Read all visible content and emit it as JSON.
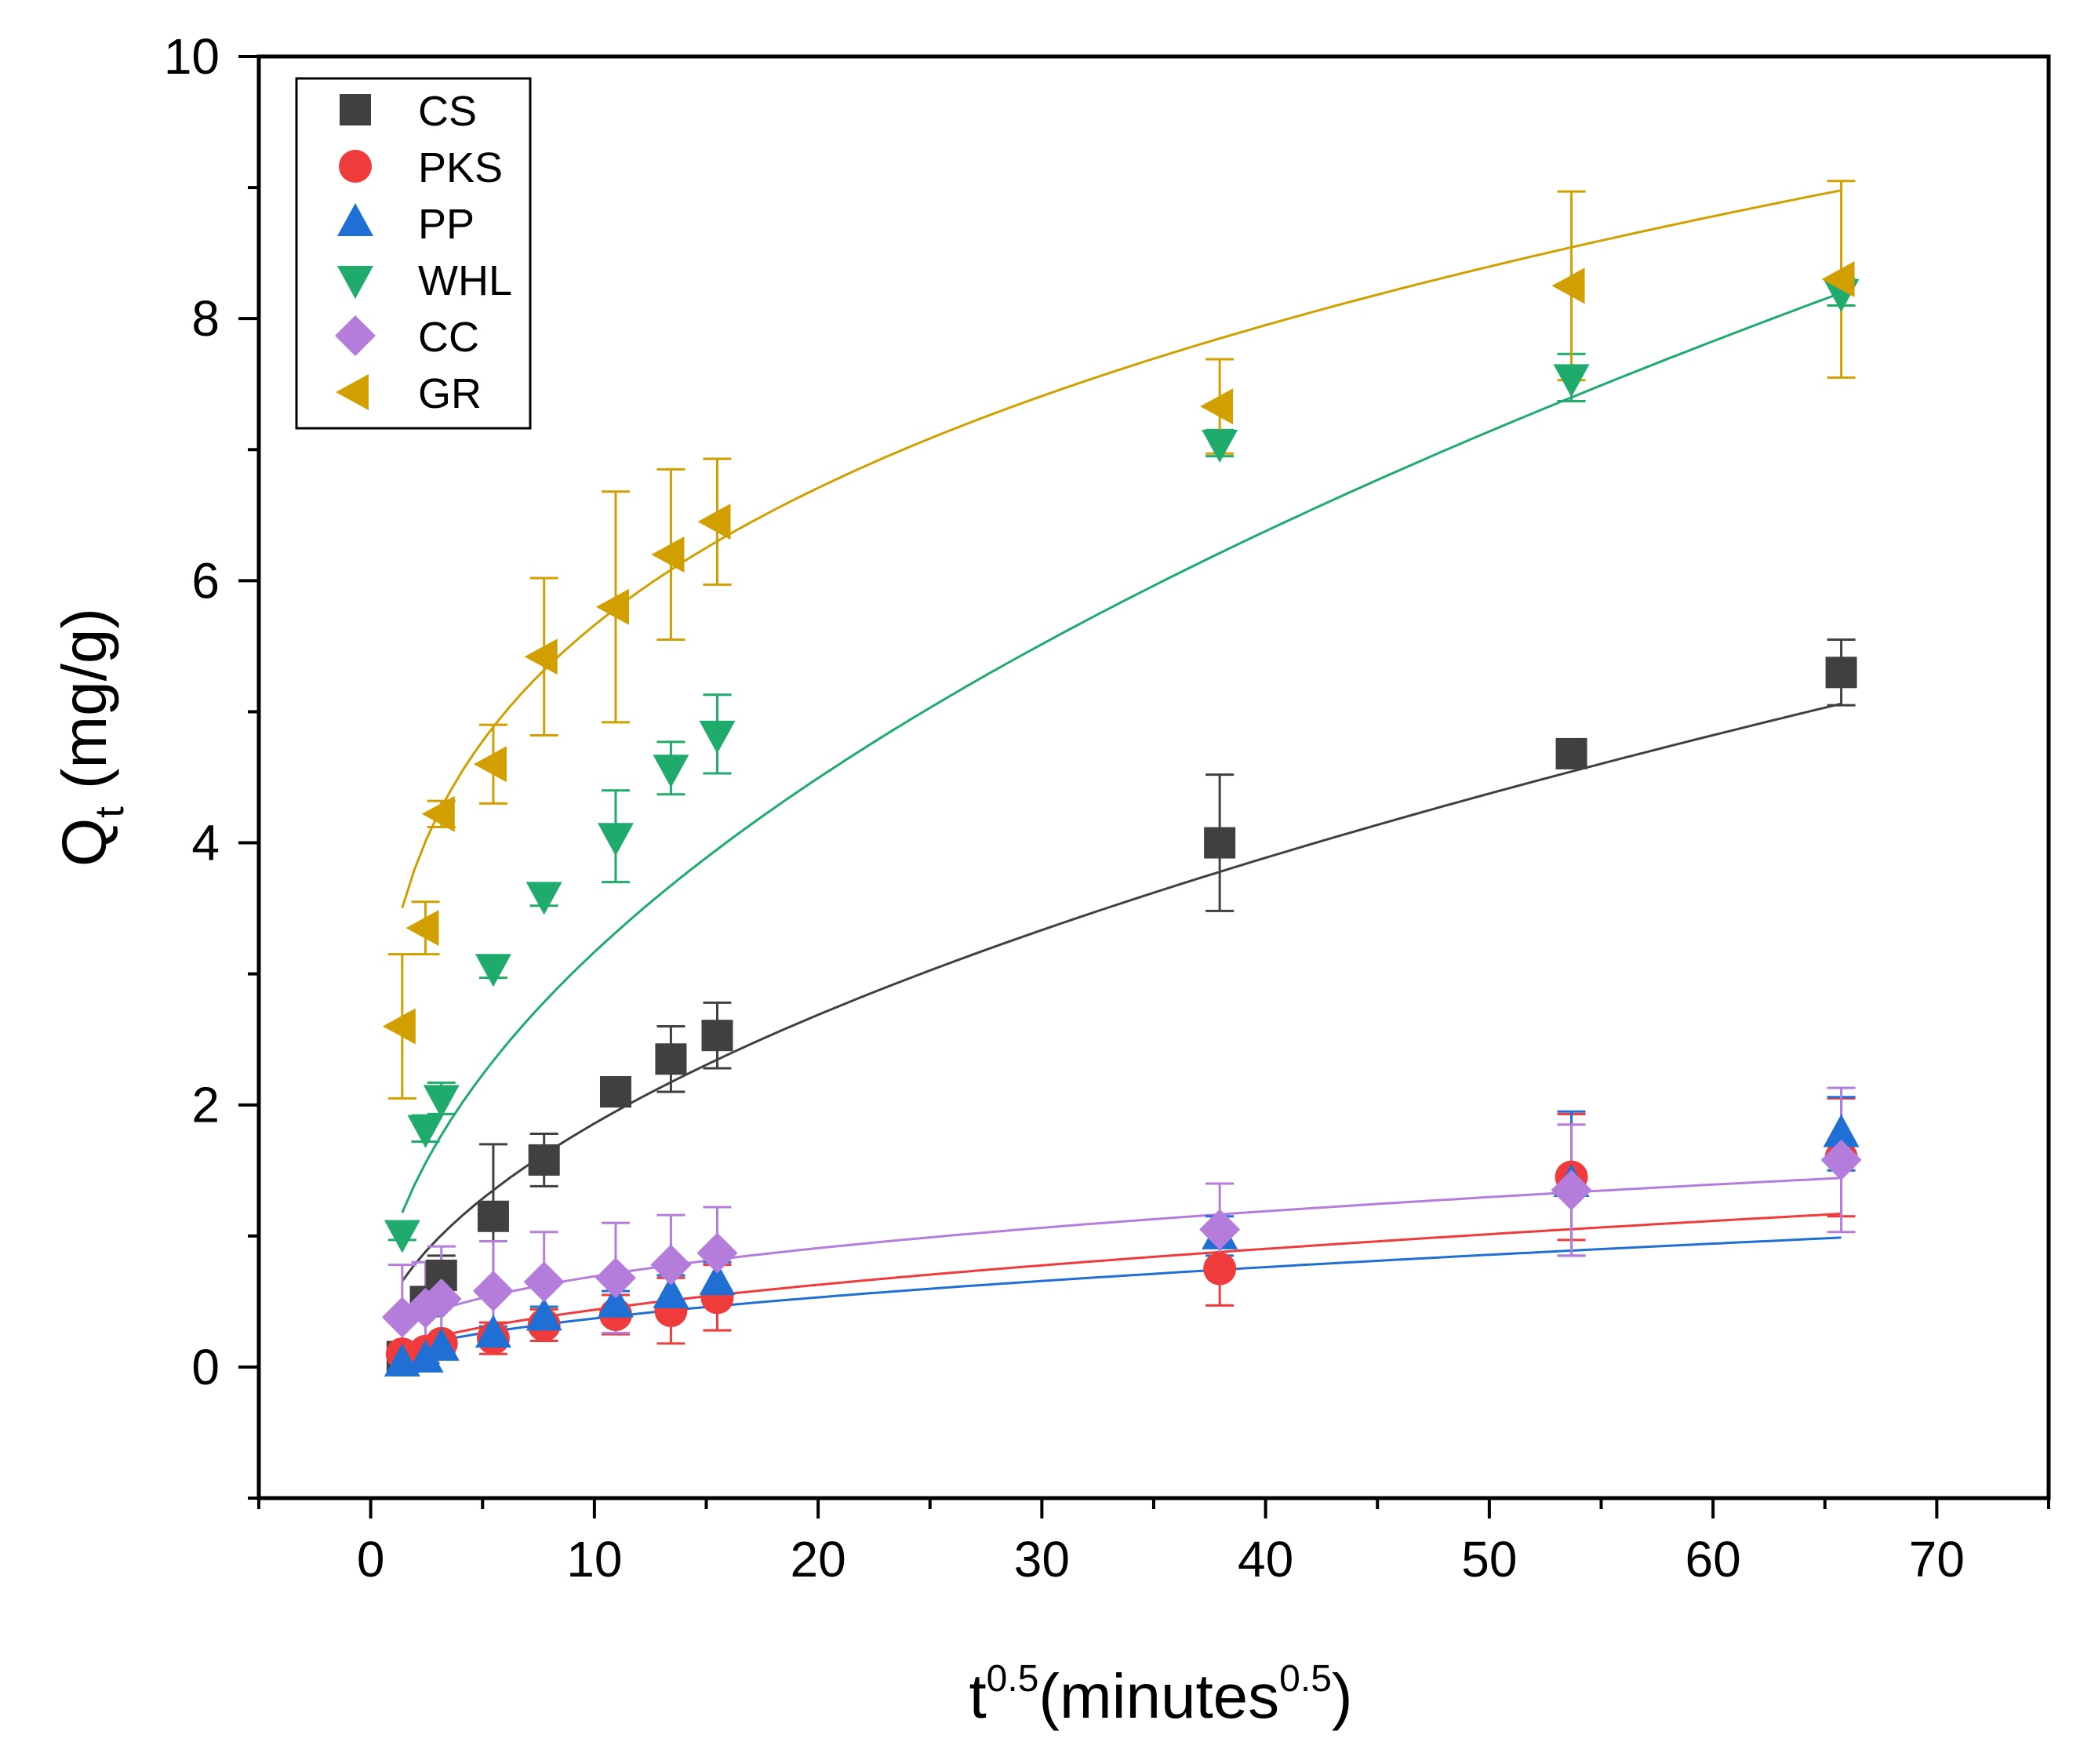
{
  "chart_data": {
    "type": "scatter",
    "title": "",
    "xlabel": {
      "base": "t",
      "sup": "0.5",
      "paren_open": "(minutes",
      "paren_sup": "0.5",
      "paren_close": ")"
    },
    "ylabel": {
      "base": "Q",
      "sub": "t",
      "unit": " (mg/g)"
    },
    "xlim": [
      -5,
      75
    ],
    "ylim": [
      -1,
      10
    ],
    "xticks": [
      0,
      10,
      20,
      30,
      40,
      50,
      60,
      70
    ],
    "yticks": [
      0,
      2,
      4,
      6,
      8,
      10
    ],
    "grid": false,
    "legend_position": "top-left",
    "x": [
      1.41,
      2.45,
      3.16,
      5.48,
      7.75,
      10.95,
      13.42,
      15.49,
      37.95,
      53.67,
      65.73
    ],
    "series": [
      {
        "name": "CS",
        "marker": "square",
        "color": "#404040",
        "values": [
          0.08,
          0.5,
          0.7,
          1.15,
          1.58,
          2.1,
          2.35,
          2.53,
          4.0,
          4.68,
          5.3
        ],
        "errors": [
          0.05,
          0.08,
          0.15,
          0.55,
          0.2,
          0.05,
          0.25,
          0.25,
          0.52,
          0.06,
          0.25
        ],
        "fit": {
          "a": 0.546,
          "b": 0.532
        }
      },
      {
        "name": "PKS",
        "marker": "circle",
        "color": "#ef3b3b",
        "values": [
          0.1,
          0.12,
          0.18,
          0.22,
          0.32,
          0.4,
          0.43,
          0.53,
          0.75,
          1.45,
          1.6
        ],
        "errors": [
          0.05,
          0.05,
          0.05,
          0.12,
          0.12,
          0.15,
          0.25,
          0.25,
          0.28,
          0.48,
          0.45
        ],
        "fit": {
          "a": 0.131,
          "b": 0.523
        }
      },
      {
        "name": "PP",
        "marker": "triangle-up",
        "color": "#1f6fd4",
        "values": [
          0.03,
          0.06,
          0.15,
          0.25,
          0.38,
          0.48,
          0.55,
          0.65,
          1.0,
          1.4,
          1.78
        ],
        "errors": [
          0.03,
          0.03,
          0.05,
          0.06,
          0.08,
          0.1,
          0.15,
          0.15,
          0.15,
          0.55,
          0.28
        ],
        "fit": {
          "a": 0.112,
          "b": 0.52
        }
      },
      {
        "name": "WHL",
        "marker": "triangle-down",
        "color": "#1fab6c",
        "values": [
          1.02,
          1.82,
          2.05,
          3.05,
          3.6,
          4.05,
          4.57,
          4.83,
          7.05,
          7.55,
          8.2
        ],
        "errors": [
          0.05,
          0.1,
          0.12,
          0.08,
          0.08,
          0.35,
          0.2,
          0.3,
          0.1,
          0.18,
          0.1
        ],
        "fit": {
          "a": 0.99,
          "b": 0.505
        }
      },
      {
        "name": "CC",
        "marker": "diamond",
        "color": "#b57ddb",
        "values": [
          0.38,
          0.45,
          0.52,
          0.58,
          0.65,
          0.68,
          0.78,
          0.87,
          1.05,
          1.35,
          1.58
        ],
        "errors": [
          0.4,
          0.35,
          0.4,
          0.38,
          0.38,
          0.42,
          0.38,
          0.35,
          0.35,
          0.5,
          0.55
        ],
        "fit": {
          "a": 0.282,
          "b": 0.39
        }
      },
      {
        "name": "GR",
        "marker": "triangle-left",
        "color": "#d19f00",
        "values": [
          2.6,
          3.35,
          4.22,
          4.6,
          5.42,
          5.8,
          6.2,
          6.45,
          7.33,
          8.25,
          8.3
        ],
        "errors": [
          0.55,
          0.2,
          0.1,
          0.3,
          0.6,
          0.88,
          0.65,
          0.48,
          0.36,
          0.72,
          0.75
        ],
        "fit": {
          "a": 3.22,
          "b": 0.245
        }
      }
    ]
  }
}
